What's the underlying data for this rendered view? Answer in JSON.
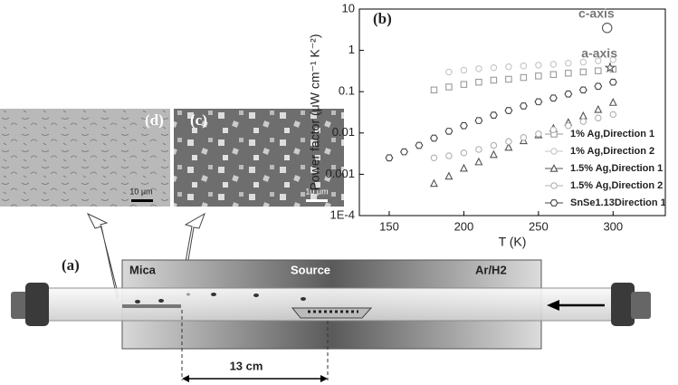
{
  "chart_data": {
    "type": "scatter",
    "panel_label": "(b)",
    "x_label": "T (K)",
    "y_label": "Power factor (μW cm⁻¹ K⁻²)",
    "xlim": [
      130,
      335
    ],
    "ylim": [
      0.0001,
      10
    ],
    "log_y": true,
    "xticks": [
      150,
      200,
      250,
      300
    ],
    "yticks": [
      {
        "value": 0.0001,
        "label": "1E-4"
      },
      0.001,
      0.01,
      0.1,
      1,
      10
    ],
    "legend": "lower right",
    "series": [
      {
        "name": "1% Ag,Direction 1",
        "marker": "square",
        "color": "#9a9a9a",
        "x": [
          180,
          190,
          200,
          210,
          220,
          230,
          240,
          250,
          260,
          270,
          280,
          290,
          300
        ],
        "values": [
          0.11,
          0.13,
          0.15,
          0.17,
          0.19,
          0.2,
          0.22,
          0.24,
          0.26,
          0.28,
          0.3,
          0.32,
          0.35
        ]
      },
      {
        "name": "1% Ag,Direction 2",
        "marker": "circle",
        "color": "#c4c4c4",
        "x": [
          190,
          200,
          210,
          220,
          230,
          240,
          250,
          260,
          270,
          280,
          290,
          300
        ],
        "values": [
          0.3,
          0.33,
          0.36,
          0.38,
          0.4,
          0.42,
          0.44,
          0.46,
          0.49,
          0.52,
          0.56,
          0.6
        ]
      },
      {
        "name": "1.5% Ag,Direction 1",
        "marker": "triangle",
        "color": "#555555",
        "x": [
          180,
          190,
          200,
          210,
          220,
          230,
          240,
          250,
          260,
          270,
          280,
          290,
          300
        ],
        "values": [
          0.0006,
          0.0009,
          0.0014,
          0.002,
          0.003,
          0.0045,
          0.0065,
          0.009,
          0.013,
          0.018,
          0.026,
          0.037,
          0.055
        ]
      },
      {
        "name": "1.5% Ag,Direction 2",
        "marker": "circle",
        "color": "#b0b0b0",
        "x": [
          180,
          190,
          200,
          210,
          220,
          230,
          240,
          250,
          260,
          270,
          280,
          290,
          300
        ],
        "values": [
          0.0025,
          0.0028,
          0.0033,
          0.004,
          0.005,
          0.0062,
          0.0078,
          0.0095,
          0.012,
          0.015,
          0.019,
          0.023,
          0.028
        ]
      },
      {
        "name": "SnSe1.13Direction 1",
        "marker": "hexagon",
        "color": "#444444",
        "x": [
          150,
          160,
          170,
          180,
          190,
          200,
          210,
          220,
          230,
          240,
          250,
          260,
          270,
          280,
          290,
          300
        ],
        "values": [
          0.0025,
          0.0035,
          0.005,
          0.0075,
          0.011,
          0.015,
          0.02,
          0.027,
          0.035,
          0.045,
          0.057,
          0.07,
          0.088,
          0.11,
          0.135,
          0.17
        ]
      }
    ],
    "annotations": [
      {
        "text": "c-axis",
        "marker": "circle",
        "x": 296,
        "y": 3.5
      },
      {
        "text": "a-axis",
        "marker": "star",
        "x": 298,
        "y": 0.38
      }
    ]
  },
  "diagram": {
    "panel_label": "(a)",
    "mica": "Mica",
    "source": "Source",
    "gas": "Ar/H2",
    "distance": "13 cm"
  },
  "micrographs": [
    {
      "label": "(d)",
      "scale": "10 μm"
    },
    {
      "label": "(c)",
      "scale": "10 μm"
    }
  ]
}
